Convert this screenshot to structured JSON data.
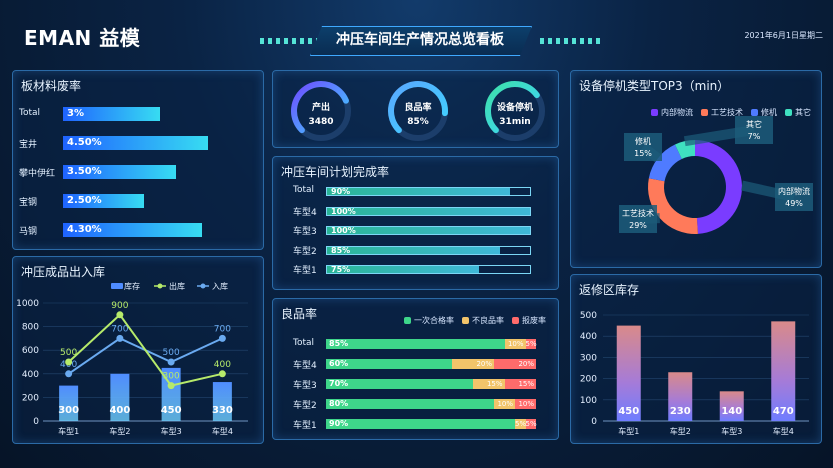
{
  "header": {
    "logo": "EMAN 益模",
    "title": "冲压车间生产情况总览看板",
    "date": "2021年6月1日星期二"
  },
  "scrap": {
    "title": "板材料废率",
    "rows": [
      {
        "label": "Total",
        "value": 3,
        "text": "3%"
      },
      {
        "label": "宝井",
        "value": 4.5,
        "text": "4.50%"
      },
      {
        "label": "攀中伊红",
        "value": 3.5,
        "text": "3.50%"
      },
      {
        "label": "宝钢",
        "value": 2.5,
        "text": "2.50%"
      },
      {
        "label": "马钢",
        "value": 4.3,
        "text": "4.30%"
      }
    ]
  },
  "gauges": [
    {
      "label": "产出",
      "value_text": "3480",
      "fraction": 0.75,
      "color": "#6f4bff"
    },
    {
      "label": "良品率",
      "value_text": "85%",
      "fraction": 0.85,
      "color": "#5aa8ff"
    },
    {
      "label": "设备停机",
      "value_text": "31min",
      "fraction": 0.7,
      "color": "#3de0a8"
    }
  ],
  "plan": {
    "title": "冲压车间计划完成率",
    "rows": [
      {
        "label": "Total",
        "fraction": 0.9,
        "text": "90%"
      },
      {
        "label": "车型4",
        "fraction": 1.0,
        "text": "100%"
      },
      {
        "label": "车型3",
        "fraction": 1.0,
        "text": "100%"
      },
      {
        "label": "车型2",
        "fraction": 0.85,
        "text": "85%"
      },
      {
        "label": "车型1",
        "fraction": 0.75,
        "text": "75%"
      }
    ]
  },
  "quality": {
    "title": "良品率",
    "legend": [
      "一次合格率",
      "不良品率",
      "报废率"
    ],
    "colors": [
      "#3ed68a",
      "#f2c46a",
      "#ff6b6b"
    ],
    "rows": [
      {
        "label": "Total",
        "values": [
          85,
          10,
          5
        ],
        "texts": [
          "85%",
          "10%",
          "5%"
        ]
      },
      {
        "label": "车型4",
        "values": [
          60,
          20,
          20
        ],
        "texts": [
          "60%",
          "20%",
          "20%"
        ]
      },
      {
        "label": "车型3",
        "values": [
          70,
          15,
          15
        ],
        "texts": [
          "70%",
          "15%",
          "15%"
        ]
      },
      {
        "label": "车型2",
        "values": [
          80,
          10,
          10
        ],
        "texts": [
          "80%",
          "10%",
          "10%"
        ]
      },
      {
        "label": "车型1",
        "values": [
          90,
          5,
          5
        ],
        "texts": [
          "90%",
          "5%",
          "5%"
        ]
      }
    ]
  },
  "downtime": {
    "title": "设备停机类型TOP3（min）",
    "legend": [
      "内部物流",
      "工艺技术",
      "修机",
      "其它"
    ],
    "colors": [
      "#7a3cff",
      "#ff7a5a",
      "#4f7bff",
      "#3fe0c0"
    ],
    "slices": [
      {
        "name": "内部物流",
        "value": 49,
        "text": "49%"
      },
      {
        "name": "工艺技术",
        "value": 29,
        "text": "29%"
      },
      {
        "name": "修机",
        "value": 15,
        "text": "15%"
      },
      {
        "name": "其它",
        "value": 7,
        "text": "7%"
      }
    ]
  },
  "chart_data": [
    {
      "type": "bar",
      "title": "冲压成品出入库",
      "categories": [
        "车型1",
        "车型2",
        "车型3",
        "车型4"
      ],
      "ylim": [
        0,
        1000
      ],
      "yticks": [
        0,
        200,
        400,
        600,
        800,
        1000
      ],
      "series": [
        {
          "name": "库存",
          "kind": "bar",
          "values": [
            300,
            400,
            450,
            330
          ]
        },
        {
          "name": "出库",
          "kind": "line",
          "values": [
            500,
            900,
            300,
            400
          ]
        },
        {
          "name": "入库",
          "kind": "line",
          "values": [
            400,
            700,
            500,
            700
          ]
        }
      ],
      "colors": {
        "库存": "#4f8cff",
        "出库": "#b6ea6a",
        "入库": "#6aaaf0"
      }
    },
    {
      "type": "bar",
      "title": "返修区库存",
      "categories": [
        "车型1",
        "车型2",
        "车型3",
        "车型4"
      ],
      "values": [
        450,
        230,
        140,
        470
      ],
      "ylim": [
        0,
        500
      ],
      "yticks": [
        0,
        100,
        200,
        300,
        400,
        500
      ]
    }
  ]
}
